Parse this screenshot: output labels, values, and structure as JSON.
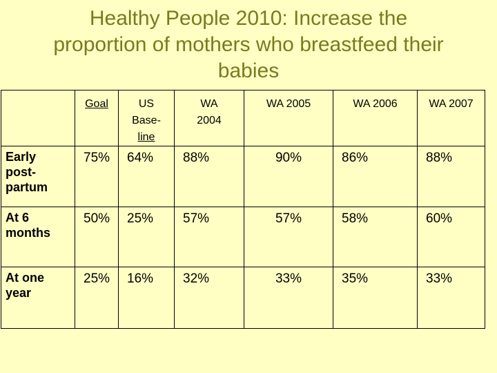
{
  "title_lines": [
    "Healthy People 2010: Increase the",
    "proportion of mothers who breastfeed their",
    "babies"
  ],
  "table": {
    "headers": {
      "goal": "Goal",
      "us_line1": "US",
      "us_line2": "Base-",
      "us_line3": "line",
      "wa2004_line1": "WA",
      "wa2004_line2": "2004",
      "wa2005": "WA 2005",
      "wa2006": "WA 2006",
      "wa2007": "WA 2007"
    },
    "rows": [
      {
        "label_lines": [
          "Early",
          "post-",
          "partum"
        ],
        "values": [
          "75%",
          "64%",
          "88%",
          "90%",
          "86%",
          "88%"
        ]
      },
      {
        "label_lines": [
          "At 6",
          "months"
        ],
        "values": [
          "50%",
          "25%",
          "57%",
          "57%",
          "58%",
          "60%"
        ]
      },
      {
        "label_lines": [
          "At one",
          "year"
        ],
        "values": [
          "25%",
          "16%",
          "32%",
          "33%",
          "35%",
          "33%"
        ]
      }
    ]
  }
}
